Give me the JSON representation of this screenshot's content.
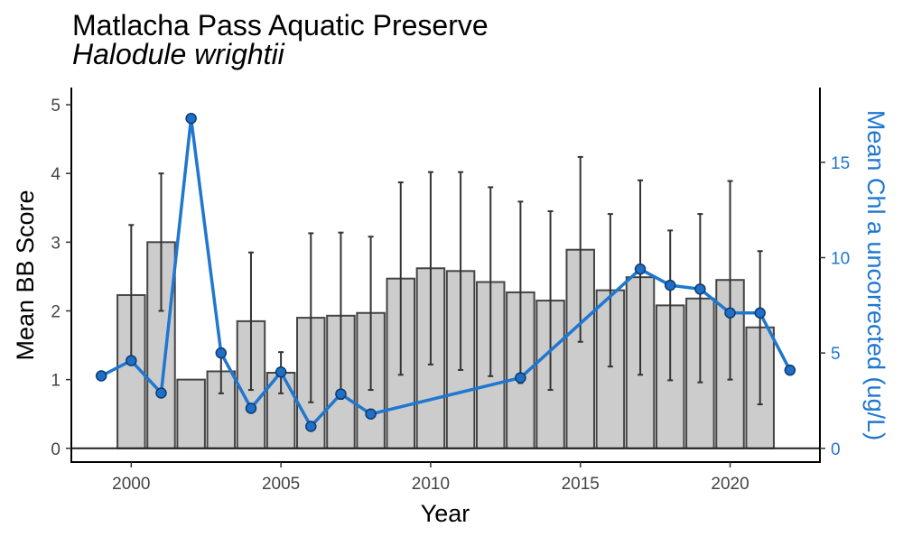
{
  "chart_data": {
    "type": "bar",
    "title": "Matlacha Pass Aquatic Preserve",
    "subtitle": "Halodule wrightii",
    "xlabel": "Year",
    "ylabel": "Mean BB Score",
    "y2label": "Mean Chl a uncorrected (ug/L)",
    "xlim": [
      1998,
      2023
    ],
    "ylim": [
      -0.2,
      5.25
    ],
    "y2lim": [
      -0.72,
      18.92
    ],
    "xticks": [
      2000,
      2005,
      2010,
      2015,
      2020
    ],
    "yticks": [
      0,
      1,
      2,
      3,
      4,
      5
    ],
    "y2ticks": [
      0,
      5,
      10,
      15
    ],
    "grid": false,
    "colors": {
      "bar_fill": "#cccccc",
      "bar_stroke": "#444444",
      "error_bar": "#333333",
      "line": "#1f77d0",
      "point_fill": "#1f6fc6",
      "point_stroke": "#0d3a6e",
      "right_axis_text": "#1f77d0"
    },
    "bars": {
      "name": "Mean BB Score",
      "x": [
        2000,
        2001,
        2002,
        2003,
        2004,
        2005,
        2006,
        2007,
        2008,
        2009,
        2010,
        2011,
        2012,
        2013,
        2014,
        2015,
        2016,
        2017,
        2018,
        2019,
        2020,
        2021
      ],
      "values": [
        2.23,
        3.0,
        1.0,
        1.12,
        1.85,
        1.1,
        1.9,
        1.93,
        1.97,
        2.47,
        2.62,
        2.58,
        2.42,
        2.27,
        2.15,
        2.89,
        2.3,
        2.49,
        2.08,
        2.18,
        2.45,
        1.76
      ],
      "err_low": [
        1.22,
        2.0,
        1.0,
        0.8,
        0.85,
        0.8,
        0.67,
        0.72,
        0.85,
        1.07,
        1.22,
        1.14,
        1.05,
        0.95,
        0.85,
        1.55,
        1.19,
        1.07,
        0.99,
        0.96,
        1.0,
        0.64
      ],
      "err_high": [
        3.25,
        4.0,
        1.0,
        1.45,
        2.85,
        1.4,
        3.13,
        3.14,
        3.08,
        3.87,
        4.02,
        4.02,
        3.8,
        3.59,
        3.45,
        4.24,
        3.41,
        3.9,
        3.17,
        3.41,
        3.89,
        2.87
      ]
    },
    "line": {
      "name": "Mean Chl a uncorrected (ug/L)",
      "x": [
        1999,
        2000,
        2001,
        2002,
        2003,
        2004,
        2005,
        2006,
        2007,
        2008,
        2013,
        2017,
        2018,
        2019,
        2020,
        2021,
        2022
      ],
      "values": [
        3.8,
        4.6,
        2.9,
        17.3,
        5.0,
        2.1,
        4.0,
        1.15,
        2.85,
        1.8,
        3.7,
        9.4,
        8.55,
        8.35,
        7.1,
        7.1,
        4.1
      ]
    }
  }
}
